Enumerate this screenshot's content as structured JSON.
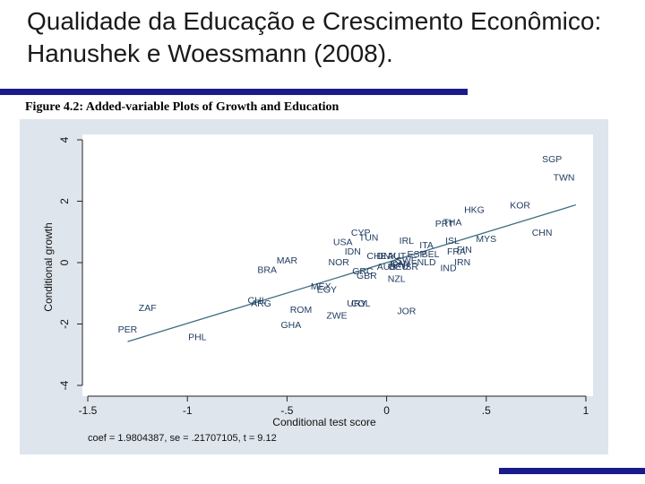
{
  "slide": {
    "title": "Qualidade da Educação e Crescimento Econômico: Hanushek e Woessmann (2008).",
    "figure_caption": "Figure 4.2: Added-variable Plots of Growth and Education"
  },
  "colors": {
    "accent_bar": "#1a1a8c",
    "plot_bg": "#ffffff",
    "frame_bg": "#dfe5ec",
    "points": "#1e3a5f"
  },
  "chart_data": {
    "type": "scatter",
    "xlabel": "Conditional test score",
    "ylabel": "Conditional growth",
    "xlim": [
      -1.5,
      1
    ],
    "ylim": [
      -4,
      4
    ],
    "xticks": [
      -1.5,
      -1,
      -0.5,
      0,
      0.5,
      1
    ],
    "xtick_labels": [
      "-1.5",
      "-1",
      "-.5",
      "0",
      ".5",
      "1"
    ],
    "yticks": [
      -4,
      -2,
      0,
      2,
      4
    ],
    "ytick_labels": [
      "-4",
      "-2",
      "0",
      "2",
      "4"
    ],
    "grid": false,
    "annotation": "coef = 1.9804387, se = .21707105, t = 9.12",
    "fit_line": {
      "slope": 1.9804387,
      "intercept": 0
    },
    "points": [
      {
        "label": "SGP",
        "x": 0.83,
        "y": 3.35
      },
      {
        "label": "TWN",
        "x": 0.89,
        "y": 2.75
      },
      {
        "label": "KOR",
        "x": 0.67,
        "y": 1.85
      },
      {
        "label": "HKG",
        "x": 0.44,
        "y": 1.7
      },
      {
        "label": "CHN",
        "x": 0.78,
        "y": 0.95
      },
      {
        "label": "MYS",
        "x": 0.5,
        "y": 0.75
      },
      {
        "label": "PRT",
        "x": 0.29,
        "y": 1.25
      },
      {
        "label": "THA",
        "x": 0.33,
        "y": 1.3
      },
      {
        "label": "ISL",
        "x": 0.33,
        "y": 0.7
      },
      {
        "label": "FIN",
        "x": 0.39,
        "y": 0.4
      },
      {
        "label": "FRA",
        "x": 0.35,
        "y": 0.35
      },
      {
        "label": "IRN",
        "x": 0.38,
        "y": 0.0
      },
      {
        "label": "IND",
        "x": 0.31,
        "y": -0.2
      },
      {
        "label": "ITA",
        "x": 0.2,
        "y": 0.55
      },
      {
        "label": "IRL",
        "x": 0.1,
        "y": 0.7
      },
      {
        "label": "ESP",
        "x": 0.15,
        "y": 0.25
      },
      {
        "label": "BEL",
        "x": 0.22,
        "y": 0.25
      },
      {
        "label": "NLD",
        "x": 0.2,
        "y": 0.0
      },
      {
        "label": "CHE",
        "x": -0.05,
        "y": 0.2
      },
      {
        "label": "DNK",
        "x": 0.0,
        "y": 0.2
      },
      {
        "label": "AUT",
        "x": 0.05,
        "y": 0.2
      },
      {
        "label": "SWE",
        "x": 0.1,
        "y": 0.05
      },
      {
        "label": "JPN",
        "x": 0.05,
        "y": -0.1
      },
      {
        "label": "CAN",
        "x": 0.07,
        "y": -0.05
      },
      {
        "label": "AUS",
        "x": 0.0,
        "y": -0.15
      },
      {
        "label": "ISR",
        "x": 0.12,
        "y": -0.15
      },
      {
        "label": "DEU",
        "x": 0.06,
        "y": -0.15
      },
      {
        "label": "GRC",
        "x": -0.12,
        "y": -0.3
      },
      {
        "label": "GBR",
        "x": -0.1,
        "y": -0.45
      },
      {
        "label": "NZL",
        "x": 0.05,
        "y": -0.55
      },
      {
        "label": "CYP",
        "x": -0.13,
        "y": 0.95
      },
      {
        "label": "TUN",
        "x": -0.09,
        "y": 0.8
      },
      {
        "label": "USA",
        "x": -0.22,
        "y": 0.65
      },
      {
        "label": "IDN",
        "x": -0.17,
        "y": 0.35
      },
      {
        "label": "NOR",
        "x": -0.24,
        "y": 0.0
      },
      {
        "label": "MAR",
        "x": -0.5,
        "y": 0.05
      },
      {
        "label": "BRA",
        "x": -0.6,
        "y": -0.25
      },
      {
        "label": "MEX",
        "x": -0.33,
        "y": -0.8
      },
      {
        "label": "EGY",
        "x": -0.3,
        "y": -0.9
      },
      {
        "label": "URY",
        "x": -0.15,
        "y": -1.35
      },
      {
        "label": "COL",
        "x": -0.13,
        "y": -1.35
      },
      {
        "label": "CHL",
        "x": -0.65,
        "y": -1.25
      },
      {
        "label": "ARG",
        "x": -0.63,
        "y": -1.35
      },
      {
        "label": "ROM",
        "x": -0.43,
        "y": -1.55
      },
      {
        "label": "ZWE",
        "x": -0.25,
        "y": -1.75
      },
      {
        "label": "JOR",
        "x": 0.1,
        "y": -1.6
      },
      {
        "label": "GHA",
        "x": -0.48,
        "y": -2.05
      },
      {
        "label": "ZAF",
        "x": -1.2,
        "y": -1.5
      },
      {
        "label": "PER",
        "x": -1.3,
        "y": -2.2
      },
      {
        "label": "PHL",
        "x": -0.95,
        "y": -2.45
      }
    ]
  }
}
